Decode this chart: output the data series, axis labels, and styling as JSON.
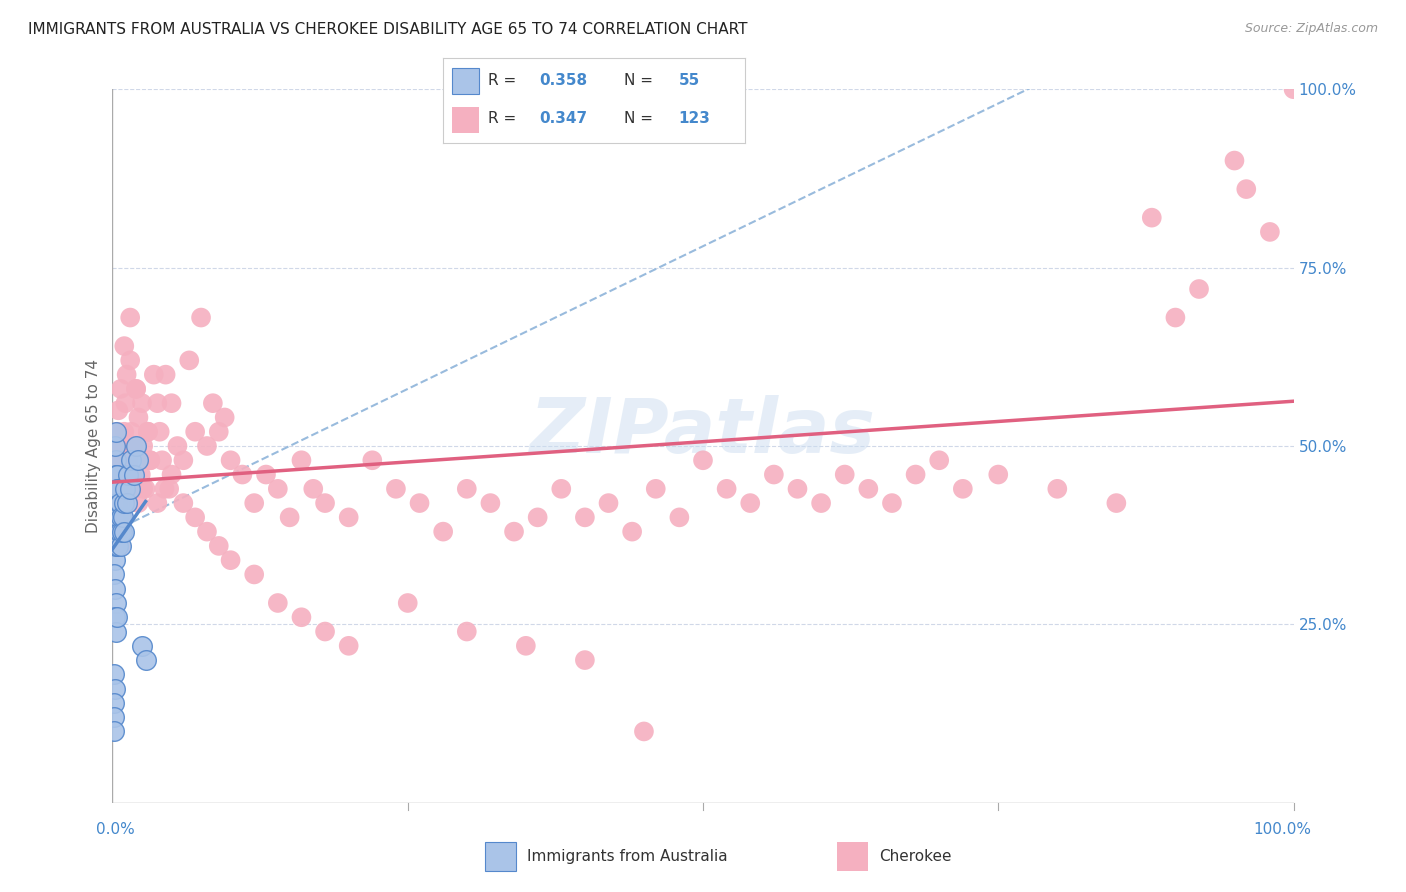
{
  "title": "IMMIGRANTS FROM AUSTRALIA VS CHEROKEE DISABILITY AGE 65 TO 74 CORRELATION CHART",
  "source": "Source: ZipAtlas.com",
  "ylabel": "Disability Age 65 to 74",
  "watermark": "ZIPatlas",
  "blue_color": "#aac4e8",
  "pink_color": "#f5b0c0",
  "blue_line_color": "#5588cc",
  "pink_line_color": "#e06080",
  "dashed_line_color": "#99bbdd",
  "legend_r1": "R = 0.358",
  "legend_n1": "N =  55",
  "legend_r2": "R = 0.347",
  "legend_n2": "N = 123",
  "blue_x": [
    0.001,
    0.001,
    0.001,
    0.001,
    0.002,
    0.002,
    0.002,
    0.002,
    0.002,
    0.002,
    0.003,
    0.003,
    0.003,
    0.003,
    0.003,
    0.003,
    0.003,
    0.004,
    0.004,
    0.004,
    0.004,
    0.005,
    0.005,
    0.005,
    0.006,
    0.006,
    0.007,
    0.007,
    0.008,
    0.009,
    0.01,
    0.01,
    0.011,
    0.012,
    0.013,
    0.015,
    0.016,
    0.018,
    0.02,
    0.022,
    0.025,
    0.028,
    0.001,
    0.002,
    0.003,
    0.002,
    0.003,
    0.001,
    0.002,
    0.001,
    0.001,
    0.001,
    0.002,
    0.003,
    0.004
  ],
  "blue_y": [
    0.42,
    0.4,
    0.38,
    0.36,
    0.44,
    0.42,
    0.4,
    0.38,
    0.36,
    0.34,
    0.48,
    0.46,
    0.44,
    0.42,
    0.4,
    0.38,
    0.36,
    0.46,
    0.44,
    0.42,
    0.38,
    0.44,
    0.4,
    0.36,
    0.42,
    0.38,
    0.4,
    0.36,
    0.38,
    0.4,
    0.42,
    0.38,
    0.44,
    0.42,
    0.46,
    0.44,
    0.48,
    0.46,
    0.5,
    0.48,
    0.22,
    0.2,
    0.32,
    0.3,
    0.28,
    0.26,
    0.24,
    0.18,
    0.16,
    0.14,
    0.12,
    0.1,
    0.5,
    0.52,
    0.26
  ],
  "pink_x": [
    0.002,
    0.003,
    0.004,
    0.005,
    0.006,
    0.007,
    0.008,
    0.009,
    0.01,
    0.011,
    0.012,
    0.013,
    0.014,
    0.015,
    0.016,
    0.017,
    0.018,
    0.019,
    0.02,
    0.022,
    0.024,
    0.026,
    0.028,
    0.03,
    0.032,
    0.035,
    0.038,
    0.04,
    0.042,
    0.045,
    0.048,
    0.05,
    0.055,
    0.06,
    0.065,
    0.07,
    0.075,
    0.08,
    0.085,
    0.09,
    0.095,
    0.1,
    0.11,
    0.12,
    0.13,
    0.14,
    0.15,
    0.16,
    0.17,
    0.18,
    0.2,
    0.22,
    0.24,
    0.26,
    0.28,
    0.3,
    0.32,
    0.34,
    0.36,
    0.38,
    0.4,
    0.42,
    0.44,
    0.46,
    0.48,
    0.5,
    0.52,
    0.54,
    0.56,
    0.58,
    0.6,
    0.62,
    0.64,
    0.66,
    0.68,
    0.7,
    0.72,
    0.75,
    0.8,
    0.85,
    0.88,
    0.9,
    0.92,
    0.95,
    0.96,
    0.98,
    1.0,
    0.003,
    0.005,
    0.007,
    0.009,
    0.015,
    0.02,
    0.025,
    0.03,
    0.01,
    0.012,
    0.008,
    0.006,
    0.004,
    0.016,
    0.018,
    0.022,
    0.026,
    0.032,
    0.038,
    0.044,
    0.05,
    0.06,
    0.07,
    0.08,
    0.09,
    0.1,
    0.12,
    0.14,
    0.16,
    0.18,
    0.2,
    0.25,
    0.3,
    0.35,
    0.4,
    0.45
  ],
  "pink_y": [
    0.5,
    0.48,
    0.52,
    0.55,
    0.46,
    0.58,
    0.42,
    0.48,
    0.52,
    0.56,
    0.5,
    0.44,
    0.48,
    0.62,
    0.52,
    0.46,
    0.5,
    0.44,
    0.58,
    0.54,
    0.46,
    0.5,
    0.44,
    0.52,
    0.48,
    0.6,
    0.56,
    0.52,
    0.48,
    0.6,
    0.44,
    0.56,
    0.5,
    0.48,
    0.62,
    0.52,
    0.68,
    0.5,
    0.56,
    0.52,
    0.54,
    0.48,
    0.46,
    0.42,
    0.46,
    0.44,
    0.4,
    0.48,
    0.44,
    0.42,
    0.4,
    0.48,
    0.44,
    0.42,
    0.38,
    0.44,
    0.42,
    0.38,
    0.4,
    0.44,
    0.4,
    0.42,
    0.38,
    0.44,
    0.4,
    0.48,
    0.44,
    0.42,
    0.46,
    0.44,
    0.42,
    0.46,
    0.44,
    0.42,
    0.46,
    0.48,
    0.44,
    0.46,
    0.44,
    0.42,
    0.82,
    0.68,
    0.72,
    0.9,
    0.86,
    0.8,
    1.0,
    0.38,
    0.42,
    0.36,
    0.4,
    0.68,
    0.58,
    0.56,
    0.52,
    0.64,
    0.6,
    0.5,
    0.48,
    0.44,
    0.46,
    0.5,
    0.42,
    0.44,
    0.48,
    0.42,
    0.44,
    0.46,
    0.42,
    0.4,
    0.38,
    0.36,
    0.34,
    0.32,
    0.28,
    0.26,
    0.24,
    0.22,
    0.28,
    0.24,
    0.22,
    0.2,
    0.1
  ]
}
